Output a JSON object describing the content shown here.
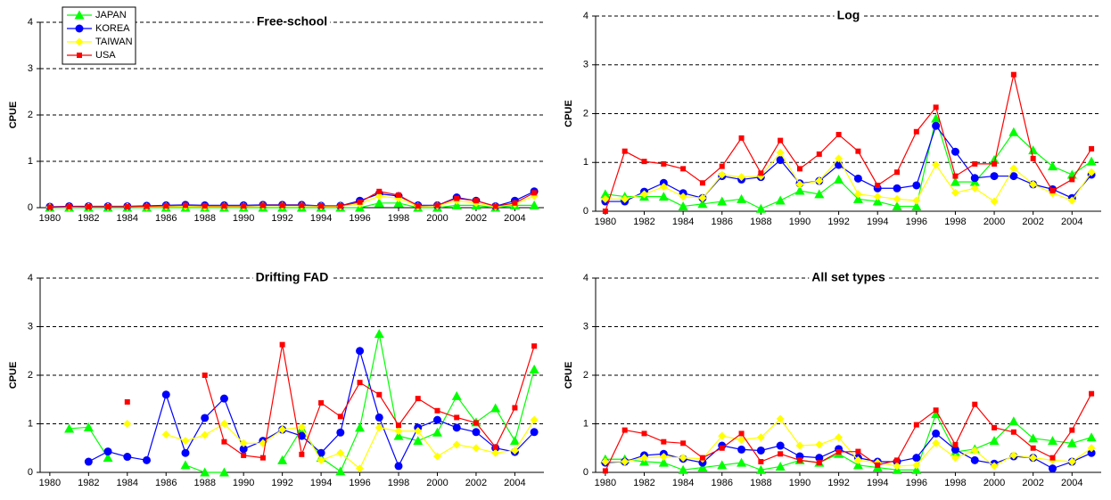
{
  "chart_data": [
    {
      "type": "line",
      "title": "Free-school",
      "ylabel": "CPUE",
      "legend": "upper left",
      "grid": true,
      "x": [
        1980,
        1981,
        1982,
        1983,
        1984,
        1985,
        1986,
        1987,
        1988,
        1989,
        1990,
        1991,
        1992,
        1993,
        1994,
        1995,
        1996,
        1997,
        1998,
        1999,
        2000,
        2001,
        2002,
        2003,
        2004,
        2005
      ],
      "xlim": [
        1979.5,
        2005.5
      ],
      "xticks": [
        1980,
        1982,
        1984,
        1986,
        1988,
        1990,
        1992,
        1994,
        1996,
        1998,
        2000,
        2002,
        2004
      ],
      "ylim": [
        0,
        4
      ],
      "yticks": [
        0,
        1,
        2,
        3,
        4
      ],
      "series": [
        {
          "name": "JAPAN",
          "color": "#00ff00",
          "marker": "triangle",
          "values": [
            0,
            0,
            0,
            0,
            0,
            0,
            0,
            0,
            0,
            0,
            0,
            0,
            0,
            0,
            0,
            0,
            0,
            0.1,
            0.1,
            0,
            0,
            0.05,
            0.05,
            0,
            0.05,
            0.05
          ]
        },
        {
          "name": "KOREA",
          "color": "#0000ff",
          "marker": "circle",
          "values": [
            0.02,
            0.03,
            0.03,
            0.03,
            0.03,
            0.04,
            0.05,
            0.06,
            0.05,
            0.05,
            0.05,
            0.06,
            0.06,
            0.06,
            0.04,
            0.04,
            0.15,
            0.3,
            0.25,
            0.05,
            0.05,
            0.22,
            0.15,
            0.03,
            0.15,
            0.35
          ]
        },
        {
          "name": "TAIWAN",
          "color": "#ffff00",
          "marker": "diamond",
          "values": [
            0.01,
            0.01,
            0.02,
            0.02,
            0.02,
            0.02,
            0.03,
            0.03,
            0.02,
            0.03,
            0.03,
            0.04,
            0.04,
            0.04,
            0.03,
            0.03,
            0.08,
            0.25,
            0.2,
            0.03,
            0.04,
            0.15,
            0.1,
            0.02,
            0.08,
            0.25
          ]
        },
        {
          "name": "USA",
          "color": "#ff0000",
          "marker": "square",
          "values": [
            0.01,
            0.02,
            0.02,
            0.02,
            0.02,
            0.03,
            0.04,
            0.05,
            0.04,
            0.04,
            0.04,
            0.05,
            0.05,
            0.05,
            0.04,
            0.04,
            0.12,
            0.35,
            0.27,
            0.04,
            0.05,
            0.2,
            0.15,
            0.03,
            0.1,
            0.32
          ]
        }
      ]
    },
    {
      "type": "line",
      "title": "Log",
      "ylabel": "CPUE",
      "grid": true,
      "x": [
        1980,
        1981,
        1982,
        1983,
        1984,
        1985,
        1986,
        1987,
        1988,
        1989,
        1990,
        1991,
        1992,
        1993,
        1994,
        1995,
        1996,
        1997,
        1998,
        1999,
        2000,
        2001,
        2002,
        2003,
        2004,
        2005
      ],
      "xlim": [
        1979.5,
        2005.5
      ],
      "xticks": [
        1980,
        1982,
        1984,
        1986,
        1988,
        1990,
        1992,
        1994,
        1996,
        1998,
        2000,
        2002,
        2004
      ],
      "ylim": [
        0,
        4
      ],
      "yticks": [
        0,
        1,
        2,
        3,
        4
      ],
      "series": [
        {
          "name": "JAPAN",
          "color": "#00ff00",
          "marker": "triangle",
          "values": [
            0.35,
            0.3,
            0.3,
            0.3,
            0.1,
            0.15,
            0.2,
            0.25,
            0.05,
            0.22,
            0.42,
            0.35,
            0.65,
            0.25,
            0.2,
            0.1,
            0.1,
            1.9,
            0.6,
            0.6,
            1.05,
            1.62,
            1.25,
            0.92,
            0.75,
            1.02
          ]
        },
        {
          "name": "KOREA",
          "color": "#0000ff",
          "marker": "circle",
          "values": [
            0.2,
            0.2,
            0.4,
            0.58,
            0.37,
            0.27,
            0.72,
            0.65,
            0.7,
            1.05,
            0.57,
            0.62,
            0.95,
            0.67,
            0.47,
            0.47,
            0.53,
            1.75,
            1.22,
            0.68,
            0.72,
            0.72,
            0.55,
            0.45,
            0.27,
            0.75
          ]
        },
        {
          "name": "TAIWAN",
          "color": "#ffff00",
          "marker": "diamond",
          "values": [
            0.25,
            0.25,
            0.35,
            0.5,
            0.3,
            0.27,
            0.75,
            0.7,
            0.72,
            1.2,
            0.55,
            0.62,
            1.08,
            0.35,
            0.3,
            0.25,
            0.22,
            0.95,
            0.38,
            0.47,
            0.2,
            0.88,
            0.55,
            0.37,
            0.22,
            0.8
          ]
        },
        {
          "name": "USA",
          "color": "#ff0000",
          "marker": "square",
          "values": [
            0,
            1.23,
            1.02,
            0.97,
            0.87,
            0.58,
            0.92,
            1.5,
            0.78,
            1.45,
            0.87,
            1.17,
            1.57,
            1.23,
            0.53,
            0.8,
            1.63,
            2.13,
            0.72,
            0.97,
            0.97,
            2.8,
            1.08,
            0.42,
            0.65,
            1.28
          ]
        }
      ]
    },
    {
      "type": "line",
      "title": "Drifting FAD",
      "ylabel": "CPUE",
      "grid": true,
      "x": [
        1980,
        1981,
        1982,
        1983,
        1984,
        1985,
        1986,
        1987,
        1988,
        1989,
        1990,
        1991,
        1992,
        1993,
        1994,
        1995,
        1996,
        1997,
        1998,
        1999,
        2000,
        2001,
        2002,
        2003,
        2004,
        2005
      ],
      "xlim": [
        1979.5,
        2005.5
      ],
      "xticks": [
        1980,
        1982,
        1984,
        1986,
        1988,
        1990,
        1992,
        1994,
        1996,
        1998,
        2000,
        2002,
        2004
      ],
      "ylim": [
        0,
        4
      ],
      "yticks": [
        0,
        1,
        2,
        3,
        4
      ],
      "series": [
        {
          "name": "JAPAN",
          "color": "#00ff00",
          "marker": "triangle",
          "values": [
            null,
            0.9,
            0.93,
            0.3,
            null,
            null,
            null,
            0.15,
            0,
            0,
            null,
            null,
            0.25,
            0.9,
            0.3,
            0.02,
            0.92,
            2.85,
            0.75,
            0.65,
            0.82,
            1.57,
            1.03,
            1.32,
            0.65,
            2.12
          ]
        },
        {
          "name": "KOREA",
          "color": "#0000ff",
          "marker": "circle",
          "values": [
            null,
            null,
            0.22,
            0.43,
            0.32,
            0.25,
            1.6,
            0.4,
            1.12,
            1.52,
            0.48,
            0.65,
            0.88,
            0.75,
            0.4,
            0.82,
            2.5,
            1.13,
            0.13,
            0.92,
            1.08,
            0.92,
            0.83,
            0.5,
            0.42,
            0.83
          ]
        },
        {
          "name": "TAIWAN",
          "color": "#ffff00",
          "marker": "diamond",
          "values": [
            null,
            null,
            null,
            null,
            1.0,
            null,
            0.78,
            0.65,
            0.77,
            1.0,
            0.6,
            0.6,
            0.88,
            0.93,
            0.25,
            0.4,
            0.08,
            0.92,
            0.85,
            0.85,
            0.33,
            0.57,
            0.5,
            0.4,
            0.45,
            1.08
          ]
        },
        {
          "name": "USA",
          "color": "#ff0000",
          "marker": "square",
          "values": [
            null,
            null,
            null,
            null,
            1.45,
            null,
            null,
            null,
            2.0,
            0.63,
            0.35,
            0.3,
            2.63,
            0.37,
            1.43,
            1.15,
            1.85,
            1.6,
            0.97,
            1.52,
            1.27,
            1.13,
            1.02,
            0.52,
            1.33,
            2.6
          ]
        }
      ]
    },
    {
      "type": "line",
      "title": "All set types",
      "ylabel": "CPUE",
      "grid": true,
      "x": [
        1980,
        1981,
        1982,
        1983,
        1984,
        1985,
        1986,
        1987,
        1988,
        1989,
        1990,
        1991,
        1992,
        1993,
        1994,
        1995,
        1996,
        1997,
        1998,
        1999,
        2000,
        2001,
        2002,
        2003,
        2004,
        2005
      ],
      "xlim": [
        1979.5,
        2005.5
      ],
      "xticks": [
        1980,
        1982,
        1984,
        1986,
        1988,
        1990,
        1992,
        1994,
        1996,
        1998,
        2000,
        2002,
        2004
      ],
      "ylim": [
        0,
        4
      ],
      "yticks": [
        0,
        1,
        2,
        3,
        4
      ],
      "series": [
        {
          "name": "JAPAN",
          "color": "#00ff00",
          "marker": "triangle",
          "values": [
            0.27,
            0.27,
            0.22,
            0.2,
            0.05,
            0.1,
            0.15,
            0.2,
            0.05,
            0.12,
            0.25,
            0.2,
            0.38,
            0.15,
            0.1,
            0.05,
            0.05,
            1.2,
            0.42,
            0.48,
            0.65,
            1.05,
            0.7,
            0.65,
            0.6,
            0.72
          ]
        },
        {
          "name": "KOREA",
          "color": "#0000ff",
          "marker": "circle",
          "values": [
            0.2,
            0.22,
            0.35,
            0.38,
            0.28,
            0.2,
            0.55,
            0.47,
            0.45,
            0.55,
            0.33,
            0.3,
            0.48,
            0.3,
            0.22,
            0.22,
            0.3,
            0.8,
            0.47,
            0.25,
            0.18,
            0.33,
            0.3,
            0.08,
            0.22,
            0.4
          ]
        },
        {
          "name": "TAIWAN",
          "color": "#ffff00",
          "marker": "diamond",
          "values": [
            0.22,
            0.22,
            0.3,
            0.32,
            0.3,
            0.28,
            0.75,
            0.67,
            0.72,
            1.1,
            0.55,
            0.57,
            0.72,
            0.25,
            0.2,
            0.13,
            0.15,
            0.6,
            0.3,
            0.45,
            0.13,
            0.35,
            0.3,
            0.25,
            0.22,
            0.5
          ]
        },
        {
          "name": "USA",
          "color": "#ff0000",
          "marker": "square",
          "values": [
            0.03,
            0.87,
            0.8,
            0.63,
            0.6,
            0.3,
            0.5,
            0.8,
            0.22,
            0.38,
            0.25,
            0.2,
            0.42,
            0.43,
            0.15,
            0.25,
            0.98,
            1.28,
            0.57,
            1.4,
            0.92,
            0.83,
            0.5,
            0.3,
            0.87,
            1.62
          ]
        }
      ]
    }
  ]
}
